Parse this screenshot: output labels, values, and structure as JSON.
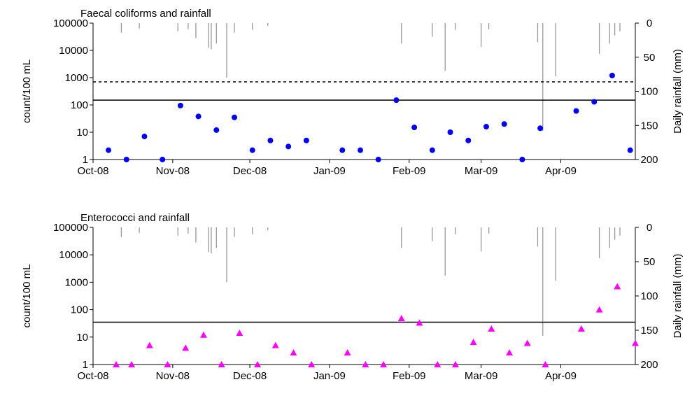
{
  "chart_data": [
    {
      "type": "scatter",
      "title": "Faecal coliforms and rainfall",
      "ylabel": "count/100 mL",
      "y2label": "Daily rainfall (mm)",
      "y_scale": "log",
      "ylim": [
        1,
        100000
      ],
      "y_ticks": [
        1,
        10,
        100,
        1000,
        10000,
        100000
      ],
      "y_tick_labels": [
        "1",
        "10",
        "100",
        "1000",
        "10000",
        "100000"
      ],
      "y2lim": [
        200,
        0
      ],
      "y2_ticks": [
        0,
        50,
        100,
        150,
        200
      ],
      "y2_tick_labels": [
        "0",
        "50",
        "100",
        "150",
        "200"
      ],
      "xlim": [
        "2008-10-01",
        "2009-04-30"
      ],
      "x_ticks": [
        "2008-10-01",
        "2008-11-01",
        "2008-12-01",
        "2009-01-01",
        "2009-02-01",
        "2009-03-01",
        "2009-04-01"
      ],
      "x_tick_labels": [
        "Oct-08",
        "Nov-08",
        "Dec-08",
        "Jan-09",
        "Feb-09",
        "Mar-09",
        "Apr-09"
      ],
      "guideline_solid": 150,
      "guideline_dotted": 700,
      "series": [
        {
          "marker": "circle",
          "color": "#0000ff",
          "x": [
            "2008-10-07",
            "2008-10-14",
            "2008-10-21",
            "2008-10-28",
            "2008-11-04",
            "2008-11-11",
            "2008-11-18",
            "2008-11-25",
            "2008-12-02",
            "2008-12-09",
            "2008-12-16",
            "2008-12-23",
            "2009-01-06",
            "2009-01-13",
            "2009-01-20",
            "2009-01-27",
            "2009-02-03",
            "2009-02-10",
            "2009-02-17",
            "2009-02-24",
            "2009-03-03",
            "2009-03-10",
            "2009-03-17",
            "2009-03-24",
            "2009-04-07",
            "2009-04-14",
            "2009-04-21",
            "2009-04-28"
          ],
          "y": [
            2.2,
            1,
            7,
            1,
            95,
            38,
            12,
            35,
            2.2,
            5,
            3,
            5,
            2.2,
            2.2,
            1,
            150,
            15,
            2.2,
            10,
            5,
            16,
            20,
            1,
            14,
            60,
            130,
            1200,
            2.2
          ]
        },
        {
          "type": "bar",
          "name": "",
          "color": "#999999",
          "x": [
            "2008-10-12",
            "2008-10-19",
            "2008-11-03",
            "2008-11-07",
            "2008-11-10",
            "2008-11-15",
            "2008-11-16",
            "2008-11-18",
            "2008-11-22",
            "2008-11-25",
            "2008-12-02",
            "2008-12-08",
            "2009-01-29",
            "2009-02-10",
            "2009-02-15",
            "2009-02-19",
            "2009-03-01",
            "2009-03-04",
            "2009-03-23",
            "2009-03-25",
            "2009-03-30",
            "2009-04-16",
            "2009-04-20",
            "2009-04-22",
            "2009-04-24"
          ],
          "values": [
            14,
            8,
            12,
            9,
            22,
            36,
            38,
            30,
            80,
            14,
            10,
            4,
            30,
            20,
            70,
            10,
            35,
            9,
            28,
            158,
            78,
            45,
            30,
            18,
            12
          ]
        }
      ]
    },
    {
      "type": "scatter",
      "title": "Enterococci and rainfall",
      "ylabel": "count/100 mL",
      "y2label": "Daily rainfall (mm)",
      "y_scale": "log",
      "ylim": [
        1,
        100000
      ],
      "y_ticks": [
        1,
        10,
        100,
        1000,
        10000,
        100000
      ],
      "y_tick_labels": [
        "1",
        "10",
        "100",
        "1000",
        "10000",
        "100000"
      ],
      "y2lim": [
        200,
        0
      ],
      "y2_ticks": [
        0,
        50,
        100,
        150,
        200
      ],
      "y2_tick_labels": [
        "0",
        "50",
        "100",
        "150",
        "200"
      ],
      "xlim": [
        "2008-10-01",
        "2009-04-30"
      ],
      "x_ticks": [
        "2008-10-01",
        "2008-11-01",
        "2008-12-01",
        "2009-01-01",
        "2009-02-01",
        "2009-03-01",
        "2009-04-01"
      ],
      "x_tick_labels": [
        "Oct-08",
        "Nov-08",
        "Dec-08",
        "Jan-09",
        "Feb-09",
        "Mar-09",
        "Apr-09"
      ],
      "guideline_solid": 35,
      "series": [
        {
          "marker": "triangle",
          "color": "#ff00ff",
          "x": [
            "2008-10-10",
            "2008-10-16",
            "2008-10-23",
            "2008-10-30",
            "2008-11-06",
            "2008-11-13",
            "2008-11-20",
            "2008-11-27",
            "2008-12-04",
            "2008-12-11",
            "2008-12-18",
            "2008-12-25",
            "2009-01-08",
            "2009-01-15",
            "2009-01-22",
            "2009-01-29",
            "2009-02-05",
            "2009-02-12",
            "2009-02-19",
            "2009-02-26",
            "2009-03-05",
            "2009-03-12",
            "2009-03-19",
            "2009-03-26",
            "2009-04-09",
            "2009-04-16",
            "2009-04-23",
            "2009-04-30"
          ],
          "y": [
            1,
            1,
            5,
            1,
            4,
            12,
            1,
            14,
            1,
            5,
            2.7,
            1,
            2.7,
            1,
            1,
            48,
            33,
            1,
            1,
            6.5,
            20,
            2.7,
            6,
            1,
            20,
            100,
            700,
            6
          ]
        },
        {
          "type": "bar",
          "name": "",
          "color": "#999999",
          "x": [
            "2008-10-12",
            "2008-10-19",
            "2008-11-03",
            "2008-11-07",
            "2008-11-10",
            "2008-11-15",
            "2008-11-16",
            "2008-11-18",
            "2008-11-22",
            "2008-11-25",
            "2008-12-02",
            "2008-12-08",
            "2009-01-29",
            "2009-02-10",
            "2009-02-15",
            "2009-02-19",
            "2009-03-01",
            "2009-03-04",
            "2009-03-23",
            "2009-03-25",
            "2009-03-30",
            "2009-04-16",
            "2009-04-20",
            "2009-04-22",
            "2009-04-24"
          ],
          "values": [
            14,
            8,
            12,
            9,
            22,
            36,
            38,
            30,
            80,
            14,
            10,
            4,
            30,
            20,
            70,
            10,
            35,
            9,
            28,
            158,
            78,
            45,
            30,
            18,
            12
          ]
        }
      ]
    }
  ]
}
